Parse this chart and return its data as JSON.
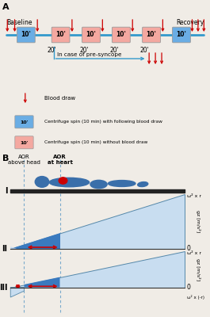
{
  "bg_color": "#f0ece6",
  "panel_A_label": "A",
  "panel_B_label": "B",
  "baseline_label": "Baseline",
  "recovery_label": "Recovery",
  "box_blue_color": "#6aade4",
  "box_pink_color": "#f4a8a0",
  "box_label": "10'",
  "gap_label": "20'",
  "pre_syncope_text": "In case of pre-syncope",
  "legend_blood_draw": "Blood draw",
  "legend_blue_text": "Centrifuge spin (10 min) with following blood draw",
  "legend_pink_text": "Centrifuge spin (10 min) without blood draw",
  "arrow_color": "#cc0000",
  "timeline_color": "#3399cc",
  "aor_head_label": "AOR\nabove head",
  "aor_heart_label": "AOR\nat heart",
  "panel_I_label": "I",
  "panel_II_label": "II",
  "panel_III_label": "III",
  "tri_dark_blue": "#3a7abf",
  "tri_light_blue": "#c8ddf0",
  "gz_label": "gz [m/s²]",
  "omega_r_label": "ω² x r",
  "omega_neg_r_label": "ω² x (-r)",
  "body_color": "#3a6faa",
  "heart_color": "#cc0000",
  "dashed_line_color": "#7aaacc",
  "zero_label": "0",
  "note_only4gaps": true
}
